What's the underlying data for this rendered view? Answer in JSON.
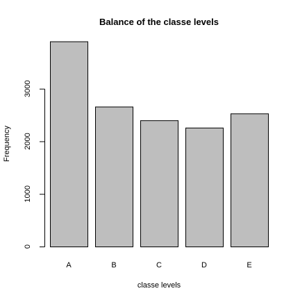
{
  "chart_data": {
    "type": "bar",
    "title": "Balance of the classe levels",
    "xlabel": "classe levels",
    "ylabel": "Frequency",
    "categories": [
      "A",
      "B",
      "C",
      "D",
      "E"
    ],
    "values": [
      3900,
      2660,
      2400,
      2260,
      2530
    ],
    "ylim": [
      0,
      4000
    ],
    "yticks": [
      0,
      1000,
      2000,
      3000
    ],
    "ytick_labels": [
      "0",
      "1000",
      "2000",
      "3000"
    ],
    "bar_color": "#bebebe",
    "grid": false,
    "legend": "none"
  }
}
